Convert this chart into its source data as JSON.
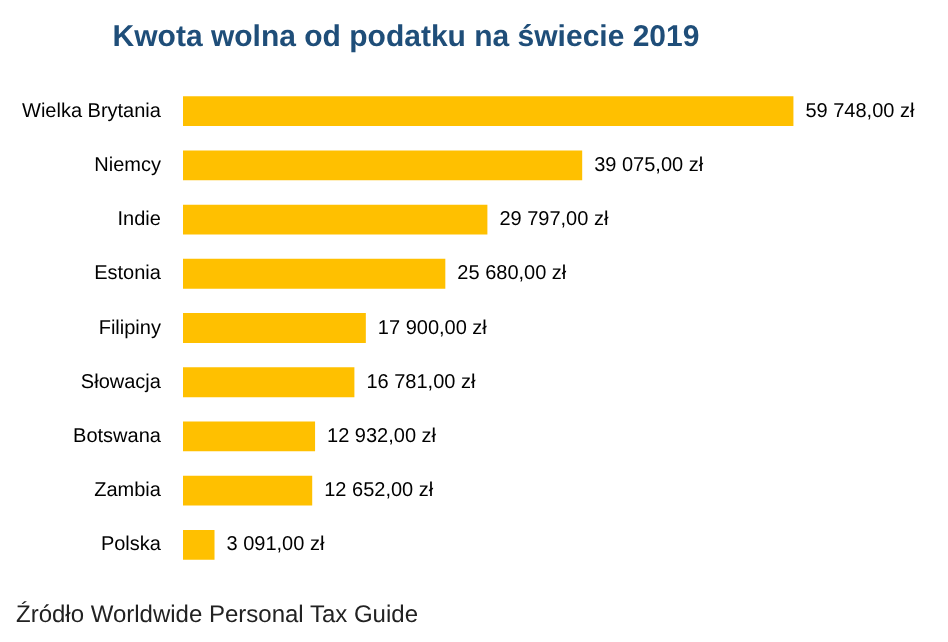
{
  "chart_data": {
    "type": "bar",
    "orientation": "horizontal",
    "title": "Kwota wolna od podatku na świecie 2019",
    "categories": [
      "Wielka Brytania",
      "Niemcy",
      "Indie",
      "Estonia",
      "Filipiny",
      "Słowacja",
      "Botswana",
      "Zambia",
      "Polska"
    ],
    "values": [
      59748,
      39075,
      29797,
      25680,
      17900,
      16781,
      12932,
      12652,
      3091
    ],
    "value_labels": [
      "59 748,00 zł",
      "39 075,00 zł",
      "29 797,00 zł",
      "25 680,00 zł",
      "17 900,00 zł",
      "16 781,00 zł",
      "12 932,00 zł",
      "12 652,00 zł",
      "3 091,00 zł"
    ],
    "color": "#ffc000",
    "annotations": [
      "Źródło Worldwide Personal Tax Guide"
    ]
  }
}
